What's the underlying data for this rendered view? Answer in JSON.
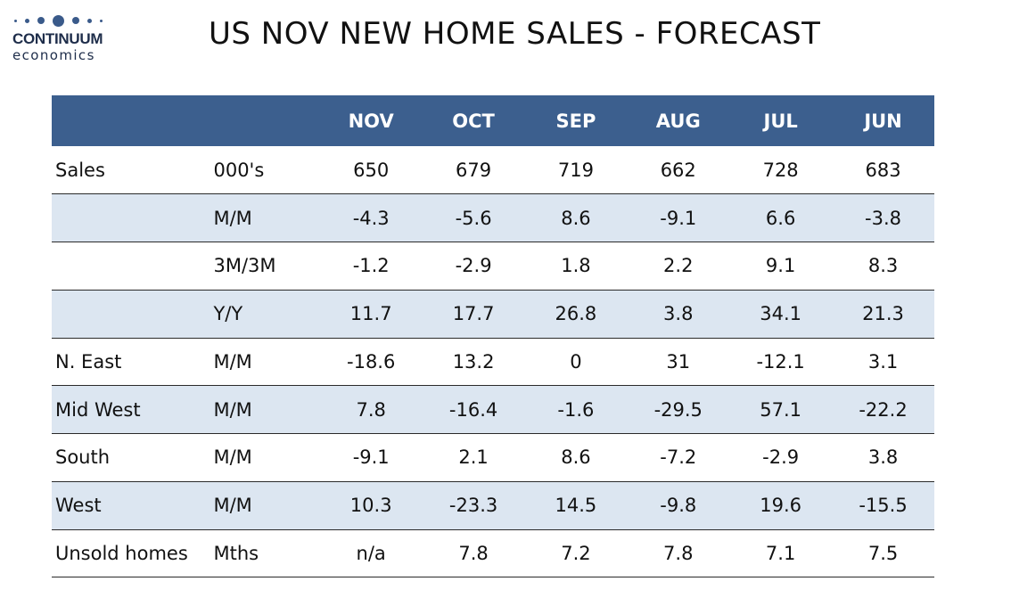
{
  "logo": {
    "brand": "CONTINUUM",
    "sub": "economics"
  },
  "chart_data": {
    "type": "table",
    "title": "US NOV NEW HOME SALES - FORECAST",
    "columns": [
      "NOV",
      "OCT",
      "SEP",
      "AUG",
      "JUL",
      "JUN"
    ],
    "rows": [
      {
        "label": "Sales",
        "unit": "000's",
        "values": [
          "650",
          "679",
          "719",
          "662",
          "728",
          "683"
        ]
      },
      {
        "label": "",
        "unit": "M/M",
        "values": [
          "-4.3",
          "-5.6",
          "8.6",
          "-9.1",
          "6.6",
          "-3.8"
        ]
      },
      {
        "label": "",
        "unit": "3M/3M",
        "values": [
          "-1.2",
          "-2.9",
          "1.8",
          "2.2",
          "9.1",
          "8.3"
        ]
      },
      {
        "label": "",
        "unit": "Y/Y",
        "values": [
          "11.7",
          "17.7",
          "26.8",
          "3.8",
          "34.1",
          "21.3"
        ]
      },
      {
        "label": "N. East",
        "unit": "M/M",
        "values": [
          "-18.6",
          "13.2",
          "0",
          "31",
          "-12.1",
          "3.1"
        ]
      },
      {
        "label": "Mid West",
        "unit": "M/M",
        "values": [
          "7.8",
          "-16.4",
          "-1.6",
          "-29.5",
          "57.1",
          "-22.2"
        ]
      },
      {
        "label": "South",
        "unit": "M/M",
        "values": [
          "-9.1",
          "2.1",
          "8.6",
          "-7.2",
          "-2.9",
          "3.8"
        ]
      },
      {
        "label": "West",
        "unit": "M/M",
        "values": [
          "10.3",
          "-23.3",
          "14.5",
          "-9.8",
          "19.6",
          "-15.5"
        ]
      },
      {
        "label": "Unsold homes",
        "unit": "Mths",
        "values": [
          "n/a",
          "7.8",
          "7.2",
          "7.8",
          "7.1",
          "7.5"
        ]
      }
    ],
    "colors": {
      "header_bg": "#3c5f8e",
      "header_text": "#ffffff",
      "stripe": "#dce6f1",
      "rule": "#2a2a2a"
    }
  }
}
